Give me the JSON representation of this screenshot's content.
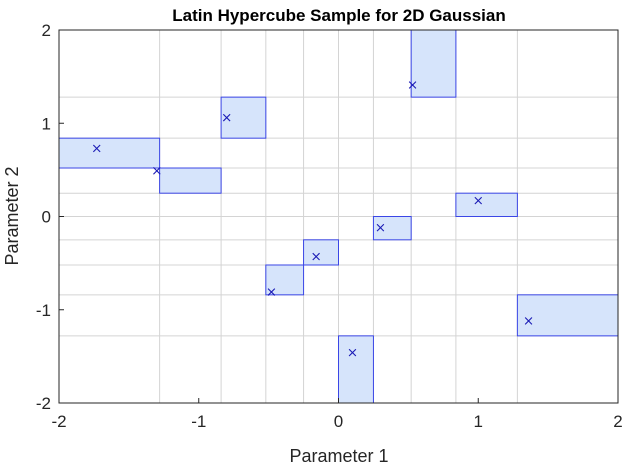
{
  "chart_data": {
    "type": "scatter",
    "title": "Latin Hypercube Sample for 2D Gaussian",
    "xlabel": "Parameter 1",
    "ylabel": "Parameter 2",
    "xlim": [
      -2,
      2
    ],
    "ylim": [
      -2,
      2
    ],
    "x_ticks": [
      -2,
      -1,
      0,
      1,
      2
    ],
    "y_ticks": [
      -2,
      -1,
      0,
      1,
      2
    ],
    "x_tick_labels": [
      "-2",
      "-1",
      "0",
      "1",
      "2"
    ],
    "y_tick_labels": [
      "-2",
      "-1",
      "0",
      "1",
      "2"
    ],
    "x_grid": [
      -2,
      -1.28,
      -0.84,
      -0.52,
      -0.25,
      0,
      0.25,
      0.52,
      0.84,
      1.28,
      2
    ],
    "y_grid": [
      -2,
      -1.28,
      -0.84,
      -0.52,
      -0.25,
      0,
      0.25,
      0.52,
      0.84,
      1.28,
      2
    ],
    "grid": true,
    "marker": "x",
    "colors": {
      "cell_fill": "#d6e4fb",
      "cell_edge": "#3b46e6",
      "marker": "#1a1ab5"
    },
    "points": [
      {
        "x": -1.73,
        "y": 0.73
      },
      {
        "x": -1.3,
        "y": 0.49
      },
      {
        "x": -0.8,
        "y": 1.06
      },
      {
        "x": -0.48,
        "y": -0.81
      },
      {
        "x": -0.16,
        "y": -0.43
      },
      {
        "x": 0.1,
        "y": -1.46
      },
      {
        "x": 0.3,
        "y": -0.12
      },
      {
        "x": 0.53,
        "y": 1.41
      },
      {
        "x": 1.0,
        "y": 0.17
      },
      {
        "x": 1.36,
        "y": -1.12
      }
    ],
    "cells": [
      {
        "x0": -2,
        "x1": -1.28,
        "y0": 0.52,
        "y1": 0.84
      },
      {
        "x0": -1.28,
        "x1": -0.84,
        "y0": 0.25,
        "y1": 0.52
      },
      {
        "x0": -0.84,
        "x1": -0.52,
        "y0": 0.84,
        "y1": 1.28
      },
      {
        "x0": -0.52,
        "x1": -0.25,
        "y0": -0.84,
        "y1": -0.52
      },
      {
        "x0": -0.25,
        "x1": 0,
        "y0": -0.52,
        "y1": -0.25
      },
      {
        "x0": 0,
        "x1": 0.25,
        "y0": -2,
        "y1": -1.28
      },
      {
        "x0": 0.25,
        "x1": 0.52,
        "y0": -0.25,
        "y1": 0
      },
      {
        "x0": 0.52,
        "x1": 0.84,
        "y0": 1.28,
        "y1": 2
      },
      {
        "x0": 0.84,
        "x1": 1.28,
        "y0": 0,
        "y1": 0.25
      },
      {
        "x0": 1.28,
        "x1": 2,
        "y0": -1.28,
        "y1": -0.84
      }
    ]
  }
}
